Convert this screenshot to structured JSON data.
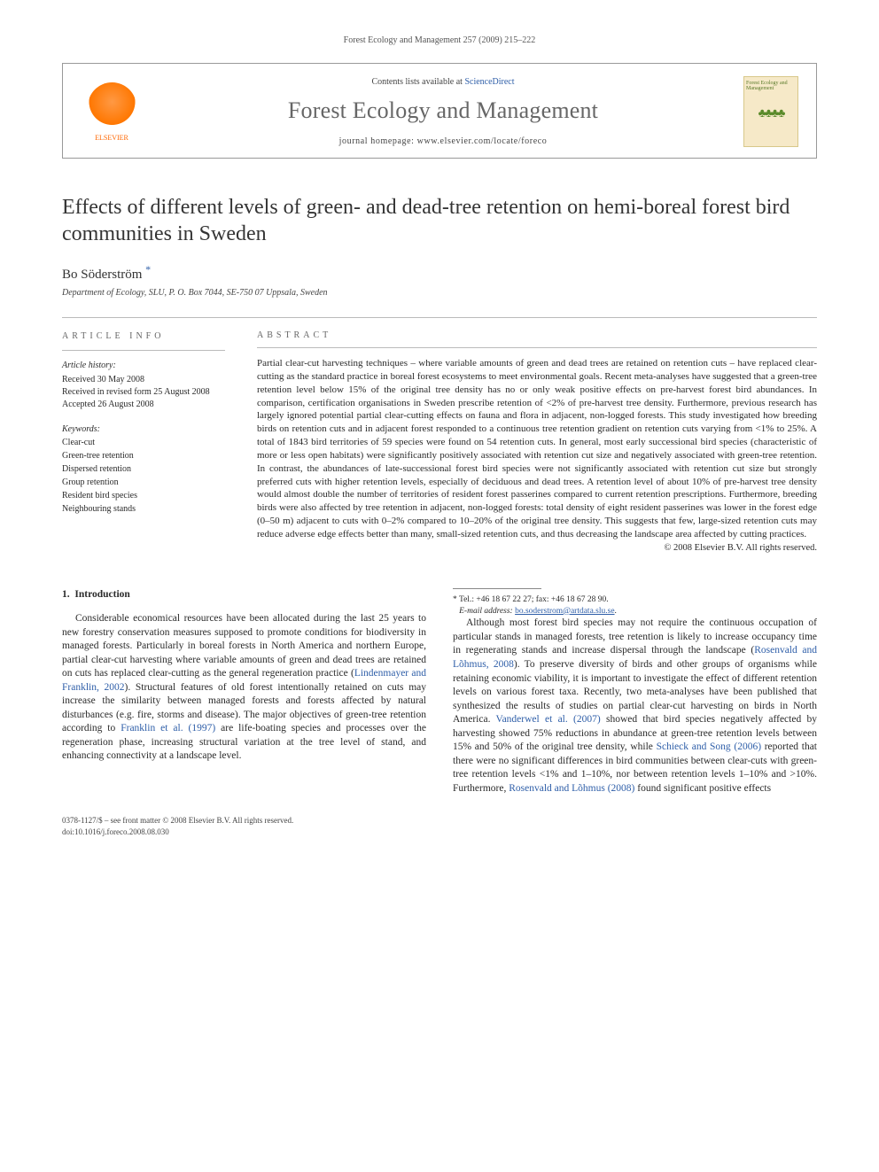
{
  "running_head": "Forest Ecology and Management 257 (2009) 215–222",
  "journal_box": {
    "contents_prefix": "Contents lists available at ",
    "contents_link": "ScienceDirect",
    "journal_title": "Forest Ecology and Management",
    "homepage_prefix": "journal homepage: ",
    "homepage_url": "www.elsevier.com/locate/foreco",
    "publisher_name": "ELSEVIER",
    "thumb_label": "Forest Ecology and Management"
  },
  "article": {
    "title": "Effects of different levels of green- and dead-tree retention on hemi-boreal forest bird communities in Sweden",
    "author": "Bo Söderström",
    "author_marker": "*",
    "affiliation": "Department of Ecology, SLU, P. O. Box 7044, SE-750 07 Uppsala, Sweden"
  },
  "article_info": {
    "heading": "ARTICLE INFO",
    "history_label": "Article history:",
    "history": [
      "Received 30 May 2008",
      "Received in revised form 25 August 2008",
      "Accepted 26 August 2008"
    ],
    "keywords_label": "Keywords:",
    "keywords": [
      "Clear-cut",
      "Green-tree retention",
      "Dispersed retention",
      "Group retention",
      "Resident bird species",
      "Neighbouring stands"
    ]
  },
  "abstract": {
    "heading": "ABSTRACT",
    "text": "Partial clear-cut harvesting techniques – where variable amounts of green and dead trees are retained on retention cuts – have replaced clear-cutting as the standard practice in boreal forest ecosystems to meet environmental goals. Recent meta-analyses have suggested that a green-tree retention level below 15% of the original tree density has no or only weak positive effects on pre-harvest forest bird abundances. In comparison, certification organisations in Sweden prescribe retention of <2% of pre-harvest tree density. Furthermore, previous research has largely ignored potential partial clear-cutting effects on fauna and flora in adjacent, non-logged forests. This study investigated how breeding birds on retention cuts and in adjacent forest responded to a continuous tree retention gradient on retention cuts varying from <1% to 25%. A total of 1843 bird territories of 59 species were found on 54 retention cuts. In general, most early successional bird species (characteristic of more or less open habitats) were significantly positively associated with retention cut size and negatively associated with green-tree retention. In contrast, the abundances of late-successional forest bird species were not significantly associated with retention cut size but strongly preferred cuts with higher retention levels, especially of deciduous and dead trees. A retention level of about 10% of pre-harvest tree density would almost double the number of territories of resident forest passerines compared to current retention prescriptions. Furthermore, breeding birds were also affected by tree retention in adjacent, non-logged forests: total density of eight resident passerines was lower in the forest edge (0–50 m) adjacent to cuts with 0–2% compared to 10–20% of the original tree density. This suggests that few, large-sized retention cuts may reduce adverse edge effects better than many, small-sized retention cuts, and thus decreasing the landscape area affected by cutting practices.",
    "copyright": "© 2008 Elsevier B.V. All rights reserved."
  },
  "body": {
    "section_number": "1.",
    "section_title": "Introduction",
    "p1a": "Considerable economical resources have been allocated during the last 25 years to new forestry conservation measures supposed to promote conditions for biodiversity in managed forests. Particularly in boreal forests in North America and northern Europe, partial clear-cut harvesting where variable amounts of green and dead trees are retained on cuts has replaced clear-cutting as the general regeneration practice (",
    "p1_ref1": "Lindenmayer and Franklin, 2002",
    "p1b": "). Structural features of old forest intentionally retained on cuts may increase the similarity between managed forests and forests affected by natural disturbances (e.g. fire, storms and disease). The major objectives of green-tree retention according to ",
    "p1_ref2": "Franklin et al. (1997)",
    "p1c": " are life-boating species and processes over the regeneration phase, increasing structural variation at the tree level of stand, and enhancing connectivity at a landscape level.",
    "p2a": "Although most forest bird species may not require the continuous occupation of particular stands in managed forests, tree retention is likely to increase occupancy time in regenerating stands and increase dispersal through the landscape (",
    "p2_ref1": "Rosenvald and Lõhmus, 2008",
    "p2b": "). To preserve diversity of birds and other groups of organisms while retaining economic viability, it is important to investigate the effect of different retention levels on various forest taxa. Recently, two meta-analyses have been published that synthesized the results of studies on partial clear-cut harvesting on birds in North America. ",
    "p2_ref2": "Vanderwel et al. (2007)",
    "p2c": " showed that bird species negatively affected by harvesting showed 75% reductions in abundance at green-tree retention levels between 15% and 50% of the original tree density, while ",
    "p2_ref3": "Schieck and Song (2006)",
    "p2d": " reported that there were no significant differences in bird communities between clear-cuts with green-tree retention levels <1% and 1–10%, nor between retention levels 1–10% and >10%. Furthermore, ",
    "p2_ref4": "Rosenvald and Lõhmus (2008)",
    "p2e": " found significant positive effects"
  },
  "footnotes": {
    "corr": "* Tel.: +46 18 67 22 27; fax: +46 18 67 28 90.",
    "email_label": "E-mail address:",
    "email": "bo.soderstrom@artdata.slu.se"
  },
  "footer": {
    "line1": "0378-1127/$ – see front matter © 2008 Elsevier B.V. All rights reserved.",
    "line2": "doi:10.1016/j.foreco.2008.08.030"
  },
  "colors": {
    "link": "#2e5ea8",
    "elsevier_orange": "#ff6600",
    "text": "#2a2a2a",
    "heading_gray": "#666666",
    "rule": "#bbbbbb",
    "thumb_bg": "#f6e9c8"
  }
}
